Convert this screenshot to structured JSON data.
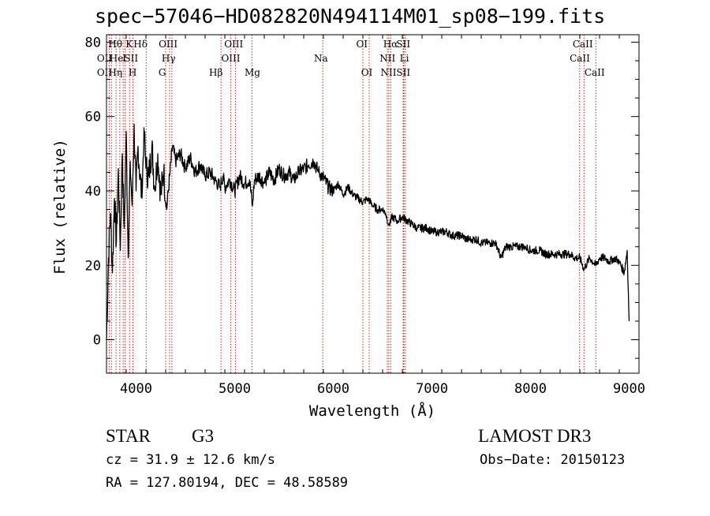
{
  "chart_data": {
    "type": "line",
    "title": "spec−57046−HD082820N494114M01_sp08−199.fits",
    "xlabel": "Wavelength (Å)",
    "ylabel": "Flux (relative)",
    "xlim": [
      3700,
      9100
    ],
    "ylim": [
      -9,
      82
    ],
    "xticks": [
      4000,
      5000,
      6000,
      7000,
      8000,
      9000
    ],
    "xtick_labels": [
      "4000",
      "5000",
      "6000",
      "7000",
      "8000",
      "9000"
    ],
    "yticks": [
      0,
      20,
      40,
      60,
      80
    ],
    "ytick_labels": [
      "0",
      "20",
      "40",
      "60",
      "80"
    ],
    "grid": false,
    "series": [
      {
        "name": "flux",
        "x": [
          3700,
          3720,
          3740,
          3760,
          3780,
          3800,
          3820,
          3840,
          3860,
          3880,
          3900,
          3920,
          3940,
          3960,
          3980,
          4000,
          4020,
          4040,
          4060,
          4080,
          4100,
          4130,
          4160,
          4190,
          4220,
          4250,
          4280,
          4310,
          4340,
          4370,
          4400,
          4450,
          4500,
          4550,
          4600,
          4650,
          4700,
          4750,
          4800,
          4850,
          4880,
          4900,
          4950,
          5000,
          5050,
          5100,
          5150,
          5180,
          5200,
          5250,
          5300,
          5350,
          5400,
          5450,
          5500,
          5550,
          5600,
          5650,
          5700,
          5750,
          5800,
          5850,
          5890,
          5950,
          6000,
          6050,
          6100,
          6150,
          6200,
          6250,
          6300,
          6350,
          6400,
          6450,
          6500,
          6530,
          6563,
          6600,
          6650,
          6700,
          6750,
          6800,
          6850,
          6900,
          6950,
          7000,
          7050,
          7100,
          7150,
          7200,
          7250,
          7300,
          7350,
          7400,
          7450,
          7500,
          7550,
          7600,
          7650,
          7700,
          7750,
          7800,
          7850,
          7900,
          7950,
          8000,
          8050,
          8100,
          8150,
          8200,
          8250,
          8300,
          8350,
          8400,
          8450,
          8500,
          8542,
          8600,
          8662,
          8700,
          8750,
          8800,
          8850,
          8900,
          8950,
          8980,
          9000
        ],
        "values": [
          0,
          22,
          34,
          18,
          38,
          26,
          46,
          24,
          50,
          30,
          56,
          22,
          48,
          36,
          58,
          40,
          52,
          44,
          38,
          57,
          46,
          44,
          52,
          40,
          50,
          39,
          45,
          35,
          44,
          52,
          48,
          50,
          46,
          49,
          45,
          47,
          44,
          45,
          43,
          41,
          44,
          41,
          43,
          40,
          44,
          42,
          43,
          36,
          43,
          44,
          42,
          45,
          43,
          46,
          44,
          45,
          43,
          45,
          46,
          47,
          48,
          45,
          44,
          41,
          40,
          42,
          39,
          41,
          39,
          38,
          37,
          38,
          36,
          35,
          35,
          34,
          31,
          33,
          32,
          33,
          32,
          31,
          30,
          30,
          30,
          29,
          29,
          29,
          29,
          28,
          28,
          28,
          27,
          27,
          27,
          26,
          26,
          26,
          26,
          22,
          25,
          25,
          25,
          25,
          25,
          24,
          24,
          24,
          23,
          23,
          23,
          23,
          23,
          23,
          22,
          22,
          19,
          22,
          20,
          22,
          22,
          21,
          22,
          21,
          18,
          24,
          5
        ]
      }
    ],
    "lines": [
      {
        "x": 3727,
        "labels": [
          "OII",
          "OII"
        ]
      },
      {
        "x": 3750,
        "labels": [
          "Hθ",
          "He"
        ]
      },
      {
        "x": 3797,
        "labels": [
          "Hθ"
        ]
      },
      {
        "x": 3835,
        "labels": [
          "Hη"
        ]
      },
      {
        "x": 3869,
        "labels": [
          "NeIII"
        ]
      },
      {
        "x": 3889,
        "labels": [
          "He I"
        ]
      },
      {
        "x": 3934,
        "labels": [
          "K"
        ]
      },
      {
        "x": 3968,
        "labels": [
          "SII",
          "H"
        ]
      },
      {
        "x": 4102,
        "labels": [
          "Hδ"
        ]
      },
      {
        "x": 4300,
        "labels": [
          "G"
        ]
      },
      {
        "x": 4340,
        "labels": [
          "Hγ"
        ]
      },
      {
        "x": 4363,
        "labels": [
          "OIII"
        ]
      },
      {
        "x": 4861,
        "labels": [
          "Hβ"
        ]
      },
      {
        "x": 4959,
        "labels": [
          "OIII"
        ]
      },
      {
        "x": 5007,
        "labels": [
          "OIII"
        ]
      },
      {
        "x": 5175,
        "labels": [
          "Mg"
        ]
      },
      {
        "x": 5893,
        "labels": [
          "Na"
        ]
      },
      {
        "x": 6300,
        "labels": [
          "OI"
        ]
      },
      {
        "x": 6364,
        "labels": [
          "OI"
        ]
      },
      {
        "x": 6548,
        "labels": [
          "NII"
        ]
      },
      {
        "x": 6563,
        "labels": [
          "Hα"
        ]
      },
      {
        "x": 6583,
        "labels": [
          "NII"
        ]
      },
      {
        "x": 6708,
        "labels": [
          "Li"
        ]
      },
      {
        "x": 6716,
        "labels": [
          "SII"
        ]
      },
      {
        "x": 6731,
        "labels": [
          "SII"
        ]
      },
      {
        "x": 8498,
        "labels": [
          "CaII"
        ]
      },
      {
        "x": 8542,
        "labels": [
          "CaII"
        ]
      },
      {
        "x": 8662,
        "labels": [
          "CaII"
        ]
      }
    ],
    "line_labels_row1": [
      {
        "text": "Hθ",
        "x": 3790
      },
      {
        "text": "K",
        "x": 3930
      },
      {
        "text": "Hδ",
        "x": 4045
      },
      {
        "text": "OIII",
        "x": 4325
      },
      {
        "text": "OIII",
        "x": 4990
      },
      {
        "text": "OI",
        "x": 6290
      },
      {
        "text": "Hα",
        "x": 6580
      },
      {
        "text": "SII",
        "x": 6710
      },
      {
        "text": "CaII",
        "x": 8530
      }
    ],
    "line_labels_row2": [
      {
        "text": "OII",
        "x": 3680
      },
      {
        "text": "He",
        "x": 3800
      },
      {
        "text": "I",
        "x": 3880
      },
      {
        "text": "SII",
        "x": 3950
      },
      {
        "text": "Hγ",
        "x": 4330
      },
      {
        "text": "OIII",
        "x": 4960
      },
      {
        "text": "Na",
        "x": 5875
      },
      {
        "text": "NII",
        "x": 6550
      },
      {
        "text": "Li",
        "x": 6720
      },
      {
        "text": "CaII",
        "x": 8500
      }
    ],
    "line_labels_row3": [
      {
        "text": "OII",
        "x": 3680
      },
      {
        "text": "Hη",
        "x": 3790
      },
      {
        "text": "H",
        "x": 3965
      },
      {
        "text": "G",
        "x": 4265
      },
      {
        "text": "Hβ",
        "x": 4810
      },
      {
        "text": "Mg",
        "x": 5180
      },
      {
        "text": "OI",
        "x": 6340
      },
      {
        "text": "NII",
        "x": 6560
      },
      {
        "text": "SII",
        "x": 6710
      },
      {
        "text": "CaII",
        "x": 8650
      }
    ]
  },
  "meta": {
    "class": "STAR",
    "subclass": "G3",
    "survey": "LAMOST DR3",
    "cz": "cz = 31.9 ± 12.6 km/s",
    "obs_date": "Obs−Date: 20150123",
    "radec": "RA = 127.80194, DEC =  48.58589"
  },
  "colors": {
    "spectrum": "#000000",
    "line_markers": "#cc2222",
    "axes": "#000000"
  }
}
